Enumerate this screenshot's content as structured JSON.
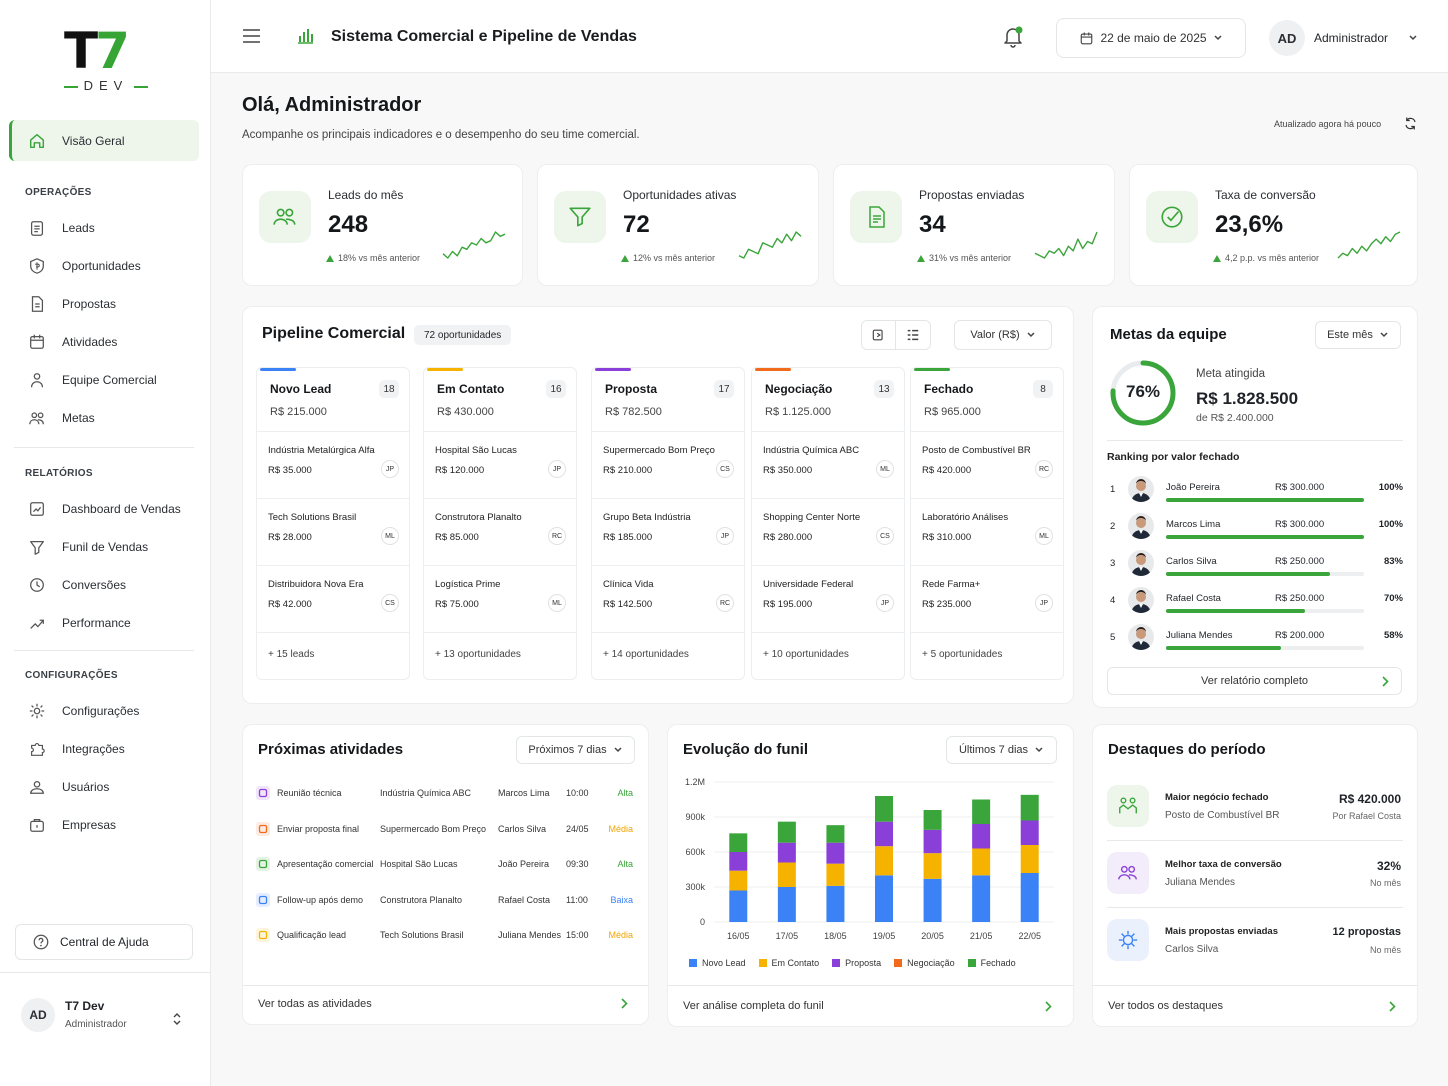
{
  "brand": {
    "logo_main": "T7",
    "logo_sub": "DEV"
  },
  "sidebar": {
    "active": "Visão Geral",
    "sections": [
      {
        "label": "OPERAÇÕES",
        "items": [
          "Leads",
          "Oportunidades",
          "Propostas",
          "Atividades",
          "Equipe Comercial",
          "Metas"
        ]
      },
      {
        "label": "RELATÓRIOS",
        "items": [
          "Dashboard de Vendas",
          "Funil de Vendas",
          "Conversões",
          "Performance"
        ]
      },
      {
        "label": "CONFIGURAÇÕES",
        "items": [
          "Configurações",
          "Integrações",
          "Usuários",
          "Empresas"
        ]
      }
    ],
    "help": "Central de Ajuda",
    "user": {
      "initials": "AD",
      "name": "T7 Dev",
      "role": "Administrador"
    }
  },
  "topbar": {
    "title": "Sistema Comercial e Pipeline de Vendas",
    "date": "22 de maio de 2025",
    "user_initials": "AD",
    "user_name": "Administrador"
  },
  "page": {
    "greeting": "Olá, Administrador",
    "subtitle": "Acompanhe os principais indicadores e o desempenho do seu time comercial.",
    "updated": "Atualizado agora há pouco"
  },
  "kpis": [
    {
      "label": "Leads do mês",
      "value": "248",
      "delta": "18% vs mês anterior",
      "spark": [
        5,
        3,
        6,
        4,
        8,
        7,
        10,
        9,
        12,
        10,
        11,
        15,
        13,
        14
      ]
    },
    {
      "label": "Oportunidades ativas",
      "value": "72",
      "delta": "12% vs mês anterior",
      "spark": [
        3,
        2,
        6,
        5,
        4,
        9,
        8,
        7,
        11,
        9,
        13,
        10,
        14,
        12
      ]
    },
    {
      "label": "Propostas enviadas",
      "value": "34",
      "delta": "31% vs mês anterior",
      "spark": [
        6,
        5,
        4,
        7,
        6,
        8,
        5,
        9,
        7,
        12,
        8,
        11,
        10,
        15
      ]
    },
    {
      "label": "Taxa de conversão",
      "value": "23,6%",
      "delta": "4,2 p.p. vs mês anterior",
      "spark": [
        3,
        5,
        4,
        7,
        5,
        8,
        6,
        9,
        11,
        9,
        12,
        10,
        13,
        14
      ]
    }
  ],
  "pipeline": {
    "title": "Pipeline Comercial",
    "badge": "72 oportunidades",
    "select": "Valor (R$)",
    "columns": [
      {
        "name": "Novo Lead",
        "count": "18",
        "value": "R$ 215.000",
        "color": "#3b82f6",
        "deals": [
          {
            "name": "Indústria Metalúrgica Alfa",
            "value": "R$ 35.000",
            "owner": "JP"
          },
          {
            "name": "Tech Solutions Brasil",
            "value": "R$ 28.000",
            "owner": "ML"
          },
          {
            "name": "Distribuidora Nova Era",
            "value": "R$ 42.000",
            "owner": "CS"
          }
        ],
        "more": "+ 15 leads"
      },
      {
        "name": "Em Contato",
        "count": "16",
        "value": "R$ 430.000",
        "color": "#f5b300",
        "deals": [
          {
            "name": "Hospital São Lucas",
            "value": "R$ 120.000",
            "owner": "JP"
          },
          {
            "name": "Construtora Planalto",
            "value": "R$ 85.000",
            "owner": "RC"
          },
          {
            "name": "Logística Prime",
            "value": "R$ 75.000",
            "owner": "ML"
          }
        ],
        "more": "+ 13 oportunidades"
      },
      {
        "name": "Proposta",
        "count": "17",
        "value": "R$ 782.500",
        "color": "#8b3fd9",
        "deals": [
          {
            "name": "Supermercado Bom Preço",
            "value": "R$ 210.000",
            "owner": "CS"
          },
          {
            "name": "Grupo Beta Indústria",
            "value": "R$ 185.000",
            "owner": "JP"
          },
          {
            "name": "Clínica Vida",
            "value": "R$ 142.500",
            "owner": "RC"
          }
        ],
        "more": "+ 14 oportunidades"
      },
      {
        "name": "Negociação",
        "count": "13",
        "value": "R$ 1.125.000",
        "color": "#f26a1b",
        "deals": [
          {
            "name": "Indústria Química ABC",
            "value": "R$ 350.000",
            "owner": "ML"
          },
          {
            "name": "Shopping Center Norte",
            "value": "R$ 280.000",
            "owner": "CS"
          },
          {
            "name": "Universidade Federal",
            "value": "R$ 195.000",
            "owner": "JP"
          }
        ],
        "more": "+ 10 oportunidades"
      },
      {
        "name": "Fechado",
        "count": "8",
        "value": "R$ 965.000",
        "color": "#3aa53a",
        "deals": [
          {
            "name": "Posto de Combustível BR",
            "value": "R$ 420.000",
            "owner": "RC"
          },
          {
            "name": "Laboratório Análises",
            "value": "R$ 310.000",
            "owner": "ML"
          },
          {
            "name": "Rede Farma+",
            "value": "R$ 235.000",
            "owner": "JP"
          }
        ],
        "more": "+ 5 oportunidades"
      }
    ]
  },
  "goals": {
    "title": "Metas da equipe",
    "period": "Este mês",
    "percent": "76%",
    "progress": 0.76,
    "label": "Meta atingida",
    "value": "R$ 1.828.500",
    "target": "de R$ 2.400.000",
    "ranking_title": "Ranking por valor fechado",
    "ranking": [
      {
        "pos": "1",
        "name": "João Pereira",
        "value": "R$ 300.000",
        "pct": "100%",
        "fill": 1.0
      },
      {
        "pos": "2",
        "name": "Marcos Lima",
        "value": "R$ 300.000",
        "pct": "100%",
        "fill": 1.0
      },
      {
        "pos": "3",
        "name": "Carlos Silva",
        "value": "R$ 250.000",
        "pct": "83%",
        "fill": 0.83
      },
      {
        "pos": "4",
        "name": "Rafael Costa",
        "value": "R$ 250.000",
        "pct": "70%",
        "fill": 0.7
      },
      {
        "pos": "5",
        "name": "Juliana Mendes",
        "value": "R$ 200.000",
        "pct": "58%",
        "fill": 0.58
      }
    ],
    "link": "Ver relatório completo"
  },
  "activities": {
    "title": "Próximas atividades",
    "period": "Próximos 7 dias",
    "rows": [
      {
        "task": "Reunião técnica",
        "company": "Indústria Química ABC",
        "owner": "Marcos Lima",
        "time": "10:00",
        "priority": "Alta",
        "pcolor": "#3aa53a",
        "icolor": "#8b3fd9"
      },
      {
        "task": "Enviar proposta final",
        "company": "Supermercado Bom Preço",
        "owner": "Carlos Silva",
        "time": "24/05",
        "priority": "Média",
        "pcolor": "#f0a500",
        "icolor": "#f26a1b"
      },
      {
        "task": "Apresentação comercial",
        "company": "Hospital São Lucas",
        "owner": "João Pereira",
        "time": "09:30",
        "priority": "Alta",
        "pcolor": "#3aa53a",
        "icolor": "#3aa53a"
      },
      {
        "task": "Follow-up após demo",
        "company": "Construtora Planalto",
        "owner": "Rafael Costa",
        "time": "11:00",
        "priority": "Baixa",
        "pcolor": "#3b82f6",
        "icolor": "#3b82f6"
      },
      {
        "task": "Qualificação lead",
        "company": "Tech Solutions Brasil",
        "owner": "Juliana Mendes",
        "time": "15:00",
        "priority": "Média",
        "pcolor": "#f0a500",
        "icolor": "#f5b300"
      }
    ],
    "link": "Ver todas as atividades"
  },
  "funnel": {
    "title": "Evolução do funil",
    "period": "Últimos 7 dias",
    "link": "Ver análise completa do funil"
  },
  "chart_data": {
    "type": "bar",
    "stacked": true,
    "categories": [
      "16/05",
      "17/05",
      "18/05",
      "19/05",
      "20/05",
      "21/05",
      "22/05"
    ],
    "yticks": [
      "0",
      "300k",
      "600k",
      "900k",
      "1.2M"
    ],
    "ylim": [
      0,
      1200000
    ],
    "series": [
      {
        "name": "Novo Lead",
        "color": "#3b82f6",
        "values": [
          270000,
          300000,
          310000,
          400000,
          370000,
          400000,
          420000
        ]
      },
      {
        "name": "Em Contato",
        "color": "#f5b300",
        "values": [
          170000,
          210000,
          190000,
          250000,
          220000,
          230000,
          240000
        ]
      },
      {
        "name": "Proposta",
        "color": "#8b3fd9",
        "values": [
          160000,
          170000,
          180000,
          210000,
          200000,
          210000,
          210000
        ]
      },
      {
        "name": "Negociação",
        "color": "#f26a1b",
        "values": [
          0,
          0,
          0,
          0,
          0,
          0,
          0
        ]
      },
      {
        "name": "Fechado",
        "color": "#3aa53a",
        "values": [
          160000,
          180000,
          150000,
          220000,
          170000,
          210000,
          220000
        ]
      }
    ]
  },
  "highlights": {
    "title": "Destaques do período",
    "items": [
      {
        "title": "Maior negócio fechado",
        "sub": "Posto de Combustível BR",
        "value": "R$ 420.000",
        "note": "Por Rafael Costa",
        "bg": "#eef6ec",
        "icon": "handshake-icon"
      },
      {
        "title": "Melhor taxa de conversão",
        "sub": "Juliana Mendes",
        "value": "32%",
        "note": "No mês",
        "bg": "#f3edfb",
        "icon": "users-icon"
      },
      {
        "title": "Mais propostas enviadas",
        "sub": "Carlos Silva",
        "value": "12 propostas",
        "note": "No mês",
        "bg": "#eaf1fd",
        "icon": "target-icon"
      }
    ],
    "link": "Ver todos os destaques"
  }
}
